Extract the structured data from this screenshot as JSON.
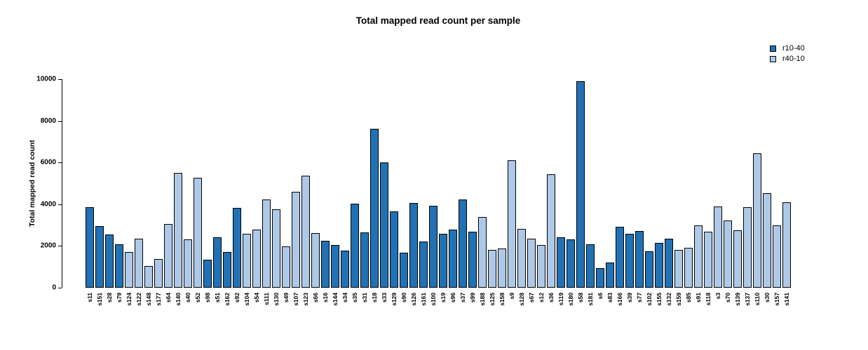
{
  "chart_data": {
    "type": "bar",
    "title": "Total mapped read count per sample",
    "xlabel": "",
    "ylabel": "Total mapped read count",
    "ylim": [
      0,
      10000
    ],
    "yticks": [
      0,
      2000,
      4000,
      6000,
      8000,
      10000
    ],
    "grid": false,
    "legend_position": "top-right",
    "legend": [
      {
        "label": "r10-40",
        "color": "#2171b5"
      },
      {
        "label": "r40-10",
        "color": "#aec9e8"
      }
    ],
    "series_colors": {
      "r10-40": "#2171b5",
      "r40-10": "#aec9e8"
    },
    "categories": [
      "s11",
      "s151",
      "s28",
      "s79",
      "s124",
      "s122",
      "s148",
      "s177",
      "s64",
      "s140",
      "s40",
      "s52",
      "s98",
      "s51",
      "s162",
      "s92",
      "s104",
      "s54",
      "s111",
      "s130",
      "s49",
      "s107",
      "s123",
      "s66",
      "s16",
      "s144",
      "s34",
      "s35",
      "s31",
      "s18",
      "s33",
      "s129",
      "s90",
      "s126",
      "s161",
      "s100",
      "s19",
      "s96",
      "s37",
      "s99",
      "s188",
      "s125",
      "s158",
      "s9",
      "s128",
      "s67",
      "s12",
      "s36",
      "s119",
      "s180",
      "s58",
      "s181",
      "s6",
      "s83",
      "s166",
      "s39",
      "s77",
      "s102",
      "s155",
      "s132",
      "s159",
      "s85",
      "s91",
      "s118",
      "s3",
      "s70",
      "s139",
      "s137",
      "s110",
      "s30",
      "s157",
      "s141"
    ],
    "values": [
      3860,
      2950,
      2550,
      2090,
      1700,
      2360,
      1050,
      1390,
      3070,
      5500,
      2300,
      5280,
      1340,
      2410,
      1720,
      3830,
      2600,
      2780,
      4240,
      3770,
      1970,
      4610,
      5360,
      2610,
      2250,
      2060,
      1790,
      4040,
      2640,
      7630,
      6010,
      3670,
      1680,
      4070,
      2200,
      3940,
      2600,
      2800,
      4240,
      2700,
      3400,
      1800,
      1870,
      6120,
      2820,
      2350,
      2060,
      5450,
      2430,
      2320,
      9900,
      2090,
      950,
      1210,
      2930,
      2570,
      2730,
      1730,
      2140,
      2360,
      1800,
      1900,
      3000,
      2670,
      3900,
      3210,
      2760,
      3870,
      6450,
      4520,
      3000,
      4110
    ],
    "groups": [
      "r10-40",
      "r10-40",
      "r10-40",
      "r10-40",
      "r40-10",
      "r40-10",
      "r40-10",
      "r40-10",
      "r40-10",
      "r40-10",
      "r40-10",
      "r40-10",
      "r10-40",
      "r10-40",
      "r10-40",
      "r10-40",
      "r40-10",
      "r40-10",
      "r40-10",
      "r40-10",
      "r40-10",
      "r40-10",
      "r40-10",
      "r40-10",
      "r10-40",
      "r10-40",
      "r10-40",
      "r10-40",
      "r10-40",
      "r10-40",
      "r10-40",
      "r10-40",
      "r10-40",
      "r10-40",
      "r10-40",
      "r10-40",
      "r10-40",
      "r10-40",
      "r10-40",
      "r10-40",
      "r40-10",
      "r40-10",
      "r40-10",
      "r40-10",
      "r40-10",
      "r40-10",
      "r40-10",
      "r40-10",
      "r10-40",
      "r10-40",
      "r10-40",
      "r10-40",
      "r10-40",
      "r10-40",
      "r10-40",
      "r10-40",
      "r10-40",
      "r10-40",
      "r10-40",
      "r10-40",
      "r40-10",
      "r40-10",
      "r40-10",
      "r40-10",
      "r40-10",
      "r40-10",
      "r40-10",
      "r40-10",
      "r40-10",
      "r40-10",
      "r40-10",
      "r40-10"
    ]
  }
}
